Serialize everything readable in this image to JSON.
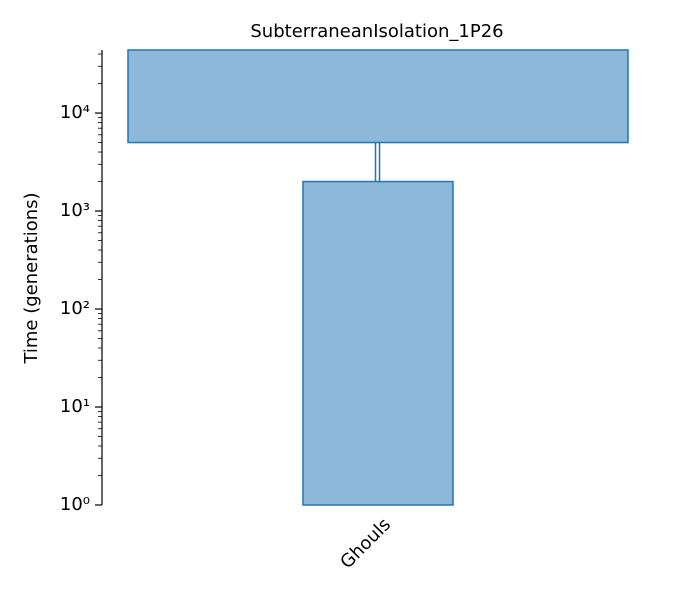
{
  "chart_data": {
    "type": "demes",
    "title": "SubterraneanIsolation_1P26",
    "y_label": "Time (generations)",
    "demes": [
      {
        "name": null,
        "end_time": 5000
      },
      {
        "name": "Ghouls",
        "start_time": 2000
      }
    ],
    "fill_color": "#8db8d9",
    "edge_color": "#1f77b4",
    "log_y": true,
    "ylim": [
      1,
      44000
    ],
    "yticks": [
      {
        "value": 1,
        "label": "10⁰"
      },
      {
        "value": 10,
        "label": "10¹"
      },
      {
        "value": 100,
        "label": "10²"
      },
      {
        "value": 1000,
        "label": "10³"
      },
      {
        "value": 10000,
        "label": "10⁴"
      }
    ]
  }
}
